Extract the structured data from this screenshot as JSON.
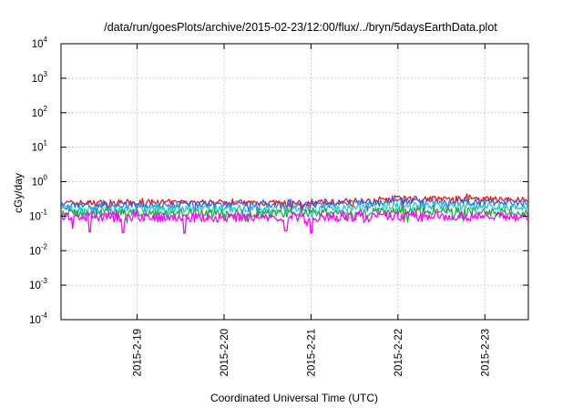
{
  "chart_data": {
    "type": "line",
    "title": "/data/run/goesPlots/archive/2015-02-23/12:00/flux/../bryn/5daysEarthData.plot",
    "xlabel": "Coordinated Universal Time (UTC)",
    "ylabel": "cGy/day",
    "yscale": "log",
    "ylim": [
      0.0001,
      10000
    ],
    "xlim": [
      "2015-02-18T03:00",
      "2015-02-23T12:00"
    ],
    "grid": true,
    "x_ticks": [
      "2015-2-19",
      "2015-2-20",
      "2015-2-21",
      "2015-2-22",
      "2015-2-23"
    ],
    "y_ticks": [
      {
        "base": "10",
        "exp": "-4"
      },
      {
        "base": "10",
        "exp": "-3"
      },
      {
        "base": "10",
        "exp": "-2"
      },
      {
        "base": "10",
        "exp": "-1"
      },
      {
        "base": "10",
        "exp": "0"
      },
      {
        "base": "10",
        "exp": "1"
      },
      {
        "base": "10",
        "exp": "2"
      },
      {
        "base": "10",
        "exp": "3"
      },
      {
        "base": "10",
        "exp": "4"
      }
    ],
    "series": [
      {
        "color": "#ee1111",
        "x": [
          "2015-02-18T03:00",
          "2015-02-19T00:00",
          "2015-02-20T00:00",
          "2015-02-21T00:00",
          "2015-02-21T18:00",
          "2015-02-22T00:00",
          "2015-02-23T00:00",
          "2015-02-23T12:00"
        ],
        "y": [
          0.24,
          0.25,
          0.25,
          0.24,
          0.3,
          0.33,
          0.31,
          0.29
        ]
      },
      {
        "color": "#3366ee",
        "x": [
          "2015-02-18T03:00",
          "2015-02-19T00:00",
          "2015-02-20T00:00",
          "2015-02-21T00:00",
          "2015-02-21T18:00",
          "2015-02-22T00:00",
          "2015-02-23T00:00",
          "2015-02-23T12:00"
        ],
        "y": [
          0.21,
          0.21,
          0.22,
          0.21,
          0.25,
          0.27,
          0.25,
          0.24
        ]
      },
      {
        "color": "#22cccc",
        "x": [
          "2015-02-18T03:00",
          "2015-02-19T00:00",
          "2015-02-20T00:00",
          "2015-02-21T00:00",
          "2015-02-21T18:00",
          "2015-02-22T00:00",
          "2015-02-23T00:00",
          "2015-02-23T12:00"
        ],
        "y": [
          0.16,
          0.16,
          0.17,
          0.16,
          0.19,
          0.2,
          0.19,
          0.18
        ]
      },
      {
        "color": "#22aa44",
        "x": [
          "2015-02-18T03:00",
          "2015-02-19T00:00",
          "2015-02-20T00:00",
          "2015-02-21T00:00",
          "2015-02-21T18:00",
          "2015-02-22T00:00",
          "2015-02-23T00:00",
          "2015-02-23T12:00"
        ],
        "y": [
          0.12,
          0.12,
          0.12,
          0.12,
          0.13,
          0.14,
          0.13,
          0.13
        ]
      },
      {
        "color": "#ff00ff",
        "x": [
          "2015-02-18T03:00",
          "2015-02-19T00:00",
          "2015-02-20T00:00",
          "2015-02-21T00:00",
          "2015-02-21T18:00",
          "2015-02-22T00:00",
          "2015-02-23T00:00",
          "2015-02-23T12:00"
        ],
        "y": [
          0.09,
          0.09,
          0.09,
          0.09,
          0.1,
          0.1,
          0.1,
          0.095
        ]
      }
    ],
    "dips": [
      {
        "x": "2015-02-18T11:00",
        "y": 0.035
      },
      {
        "x": "2015-02-18T20:00",
        "y": 0.033
      },
      {
        "x": "2015-02-19T13:00",
        "y": 0.032
      },
      {
        "x": "2015-02-20T17:00",
        "y": 0.038
      },
      {
        "x": "2015-02-21T00:00",
        "y": 0.032
      }
    ]
  }
}
